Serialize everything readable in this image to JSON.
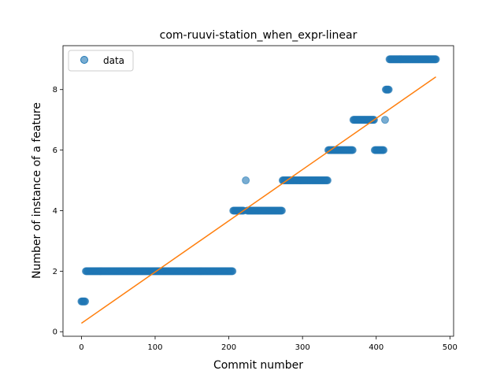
{
  "chart_data": {
    "type": "scatter",
    "title": "com-ruuvi-station_when_expr-linear",
    "xlabel": "Commit number",
    "ylabel": "Number of instance of a feature",
    "xlim": [
      -25,
      505
    ],
    "ylim": [
      -0.15,
      9.45
    ],
    "xticks": [
      0,
      100,
      200,
      300,
      400,
      500
    ],
    "yticks": [
      0,
      2,
      4,
      6,
      8
    ],
    "grid": false,
    "legend": {
      "placement": "top-left",
      "entries": [
        "data"
      ]
    },
    "colors": {
      "points": "#1f77b4",
      "fit": "#ff7f0e"
    },
    "segments": [
      {
        "x_start": 0,
        "x_end": 5,
        "y": 1
      },
      {
        "x_start": 6,
        "x_end": 205,
        "y": 2
      },
      {
        "x_start": 206,
        "x_end": 220,
        "y": 4
      },
      {
        "x_start": 223,
        "x_end": 223,
        "y": 5
      },
      {
        "x_start": 225,
        "x_end": 272,
        "y": 4
      },
      {
        "x_start": 273,
        "x_end": 334,
        "y": 5
      },
      {
        "x_start": 335,
        "x_end": 368,
        "y": 6
      },
      {
        "x_start": 369,
        "x_end": 397,
        "y": 7
      },
      {
        "x_start": 398,
        "x_end": 410,
        "y": 6
      },
      {
        "x_start": 412,
        "x_end": 412,
        "y": 7
      },
      {
        "x_start": 413,
        "x_end": 417,
        "y": 8
      },
      {
        "x_start": 418,
        "x_end": 481,
        "y": 9
      }
    ],
    "fit_line": {
      "x": [
        0,
        481
      ],
      "y": [
        0.28,
        8.42
      ]
    }
  }
}
